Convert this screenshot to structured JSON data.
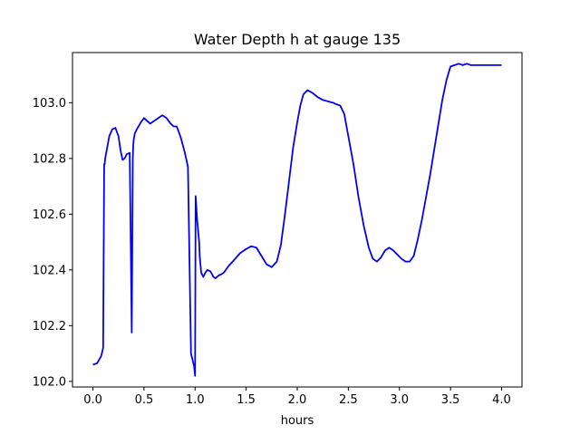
{
  "chart_data": {
    "type": "line",
    "title": "Water Depth h at gauge 135",
    "xlabel": "hours",
    "ylabel": "",
    "xlim": [
      -0.2,
      4.2
    ],
    "ylim": [
      101.98,
      103.18
    ],
    "x_ticks": [
      0.0,
      0.5,
      1.0,
      1.5,
      2.0,
      2.5,
      3.0,
      3.5,
      4.0
    ],
    "x_tick_labels": [
      "0.0",
      "0.5",
      "1.0",
      "1.5",
      "2.0",
      "2.5",
      "3.0",
      "3.5",
      "4.0"
    ],
    "y_ticks": [
      102.0,
      102.2,
      102.4,
      102.6,
      102.8,
      103.0
    ],
    "y_tick_labels": [
      "102.0",
      "102.2",
      "102.4",
      "102.6",
      "102.8",
      "103.0"
    ],
    "grid": false,
    "legend": "none",
    "series": [
      {
        "color": "#0000ff",
        "x": [
          0.0,
          0.04,
          0.08,
          0.1,
          0.11,
          0.115,
          0.12,
          0.14,
          0.16,
          0.19,
          0.22,
          0.25,
          0.27,
          0.29,
          0.31,
          0.33,
          0.36,
          0.38,
          0.39,
          0.395,
          0.4,
          0.41,
          0.43,
          0.47,
          0.5,
          0.53,
          0.56,
          0.6,
          0.64,
          0.68,
          0.72,
          0.76,
          0.79,
          0.82,
          0.86,
          0.9,
          0.93,
          0.96,
          0.99,
          1.0,
          1.005,
          1.02,
          1.04,
          1.045,
          1.06,
          1.08,
          1.1,
          1.12,
          1.15,
          1.18,
          1.2,
          1.23,
          1.26,
          1.28,
          1.3,
          1.33,
          1.38,
          1.44,
          1.5,
          1.55,
          1.6,
          1.65,
          1.7,
          1.75,
          1.8,
          1.84,
          1.88,
          1.92,
          1.96,
          2.0,
          2.03,
          2.06,
          2.1,
          2.15,
          2.2,
          2.25,
          2.3,
          2.35,
          2.38,
          2.42,
          2.46,
          2.5,
          2.55,
          2.6,
          2.65,
          2.7,
          2.74,
          2.78,
          2.82,
          2.86,
          2.9,
          2.94,
          2.98,
          3.02,
          3.06,
          3.1,
          3.14,
          3.18,
          3.22,
          3.26,
          3.3,
          3.34,
          3.38,
          3.42,
          3.46,
          3.5,
          3.54,
          3.58,
          3.62,
          3.66,
          3.7,
          3.74,
          3.78,
          3.82,
          3.86,
          3.9,
          3.94,
          3.96,
          3.98,
          4.0
        ],
        "y": [
          102.06,
          102.065,
          102.09,
          102.12,
          102.78,
          102.78,
          102.8,
          102.84,
          102.88,
          102.905,
          102.91,
          102.88,
          102.83,
          102.795,
          102.8,
          102.815,
          102.82,
          102.175,
          102.8,
          102.85,
          102.87,
          102.89,
          102.905,
          102.93,
          102.945,
          102.935,
          102.925,
          102.935,
          102.945,
          102.955,
          102.945,
          102.925,
          102.915,
          102.915,
          102.875,
          102.82,
          102.77,
          102.1,
          102.055,
          102.02,
          102.665,
          102.58,
          102.5,
          102.45,
          102.39,
          102.375,
          102.39,
          102.4,
          102.395,
          102.375,
          102.37,
          102.38,
          102.385,
          102.39,
          102.4,
          102.415,
          102.435,
          102.46,
          102.475,
          102.485,
          102.48,
          102.45,
          102.42,
          102.41,
          102.43,
          102.49,
          102.6,
          102.72,
          102.84,
          102.93,
          102.99,
          103.03,
          103.045,
          103.035,
          103.02,
          103.01,
          103.005,
          103.0,
          102.995,
          102.99,
          102.96,
          102.88,
          102.78,
          102.66,
          102.56,
          102.48,
          102.44,
          102.43,
          102.445,
          102.47,
          102.48,
          102.47,
          102.455,
          102.44,
          102.43,
          102.43,
          102.45,
          102.51,
          102.58,
          102.66,
          102.74,
          102.83,
          102.92,
          103.01,
          103.08,
          103.13,
          103.135,
          103.14,
          103.135,
          103.14,
          103.135,
          103.135,
          103.135,
          103.135,
          103.135,
          103.135,
          103.135,
          103.135,
          103.135,
          103.135
        ]
      }
    ]
  }
}
